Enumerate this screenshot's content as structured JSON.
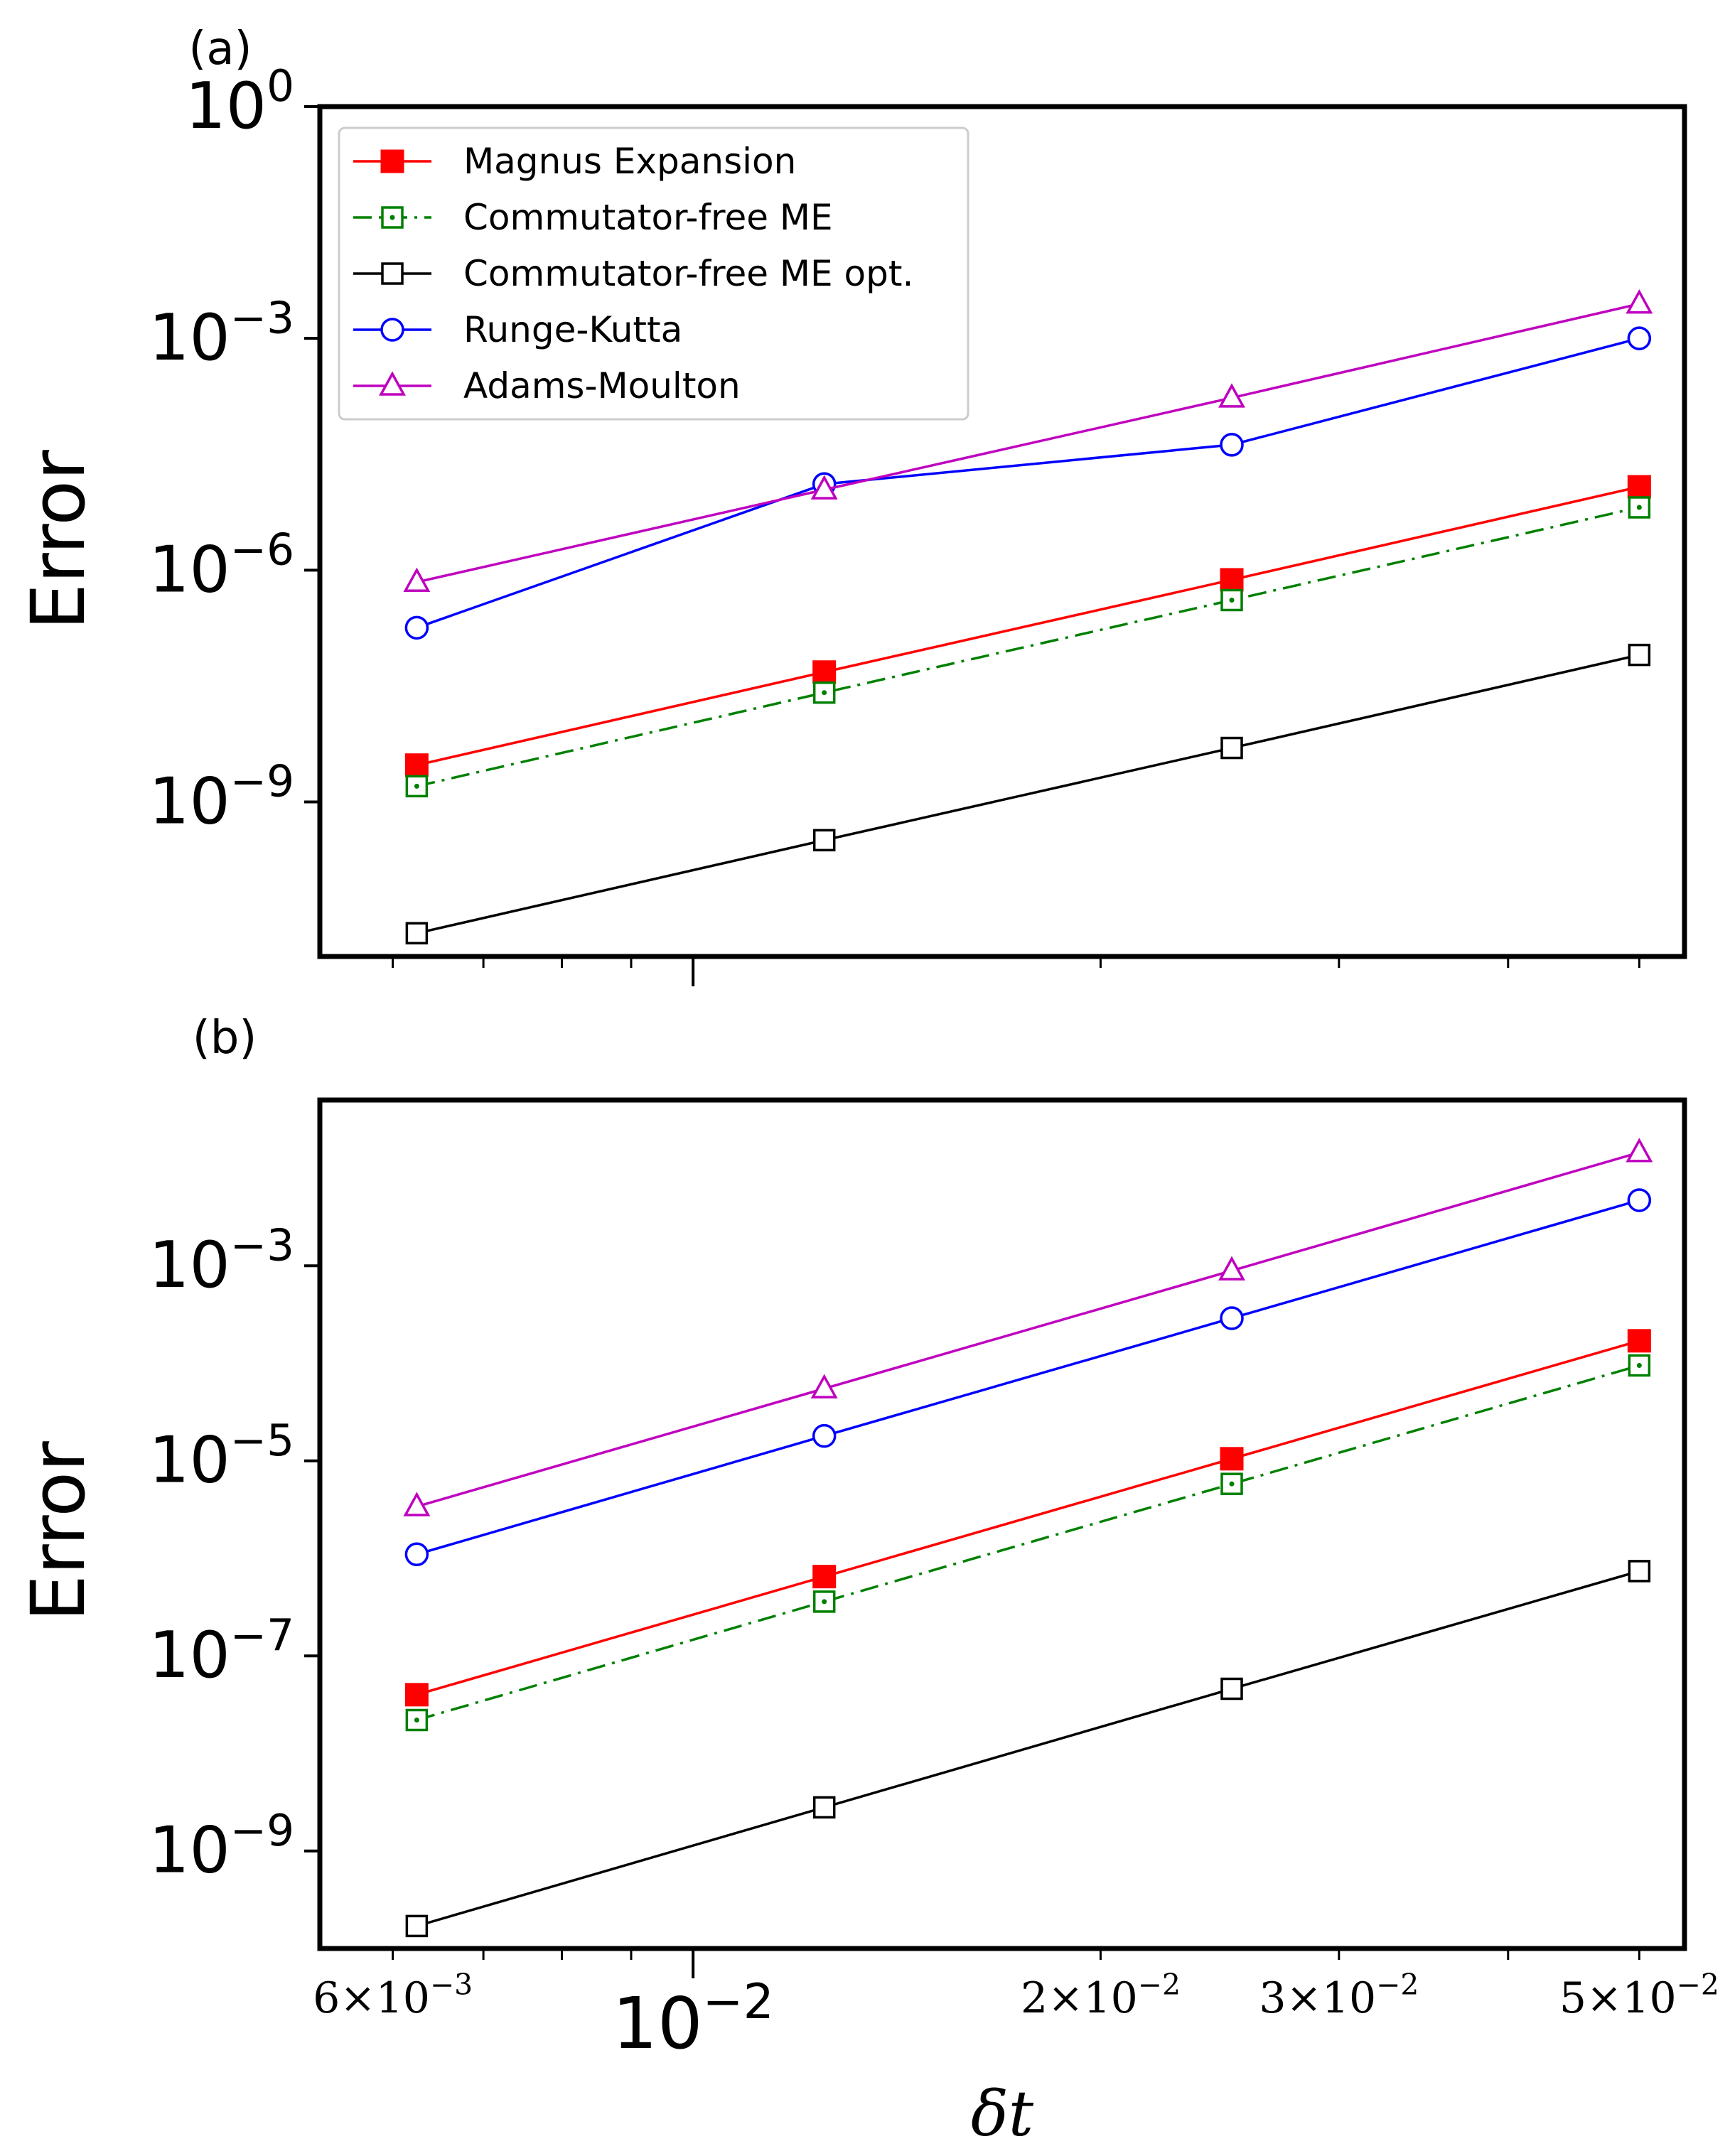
{
  "chart_data": [
    {
      "type": "line",
      "panel_label": "(a)",
      "ylabel": "Error",
      "xscale": "log",
      "yscale": "log",
      "xlim": [
        0.0053,
        0.054
      ],
      "ylim": [
        1e-11,
        1.0
      ],
      "yticks": [
        {
          "value": 1,
          "base": "10",
          "exp": "0"
        },
        {
          "value": 0.001,
          "base": "10",
          "exp": "−3"
        },
        {
          "value": 1e-06,
          "base": "10",
          "exp": "−6"
        },
        {
          "value": 1e-09,
          "base": "10",
          "exp": "−9"
        }
      ],
      "grid": false,
      "legend": {
        "position": "top-left"
      },
      "x": [
        0.00625,
        0.0125,
        0.025,
        0.05
      ],
      "series": [
        {
          "name": "Magnus Expansion",
          "color": "#ff0000",
          "marker": "square-filled",
          "linestyle": "solid",
          "values": [
            3e-09,
            4.8e-08,
            7.5e-07,
            1.2e-05
          ]
        },
        {
          "name": "Commutator-free ME",
          "color": "#008000",
          "marker": "square-dot",
          "linestyle": "dashdot",
          "values": [
            1.6e-09,
            2.6e-08,
            4.1e-07,
            6.5e-06
          ]
        },
        {
          "name": "Commutator-free ME opt.",
          "color": "#000000",
          "marker": "square-open",
          "linestyle": "solid",
          "values": [
            2e-11,
            3.2e-10,
            5e-09,
            8e-08
          ]
        },
        {
          "name": "Runge-Kutta",
          "color": "#0000ff",
          "marker": "circle-open",
          "linestyle": "solid",
          "values": [
            1.8e-07,
            1.3e-05,
            4.2e-05,
            0.001
          ]
        },
        {
          "name": "Adams-Moulton",
          "color": "#bf00bf",
          "marker": "triangle-open",
          "linestyle": "solid",
          "values": [
            7e-07,
            1.1e-05,
            0.00017,
            0.0028
          ]
        }
      ]
    },
    {
      "type": "line",
      "panel_label": "(b)",
      "ylabel": "Error",
      "xlabel": "δt",
      "xscale": "log",
      "yscale": "log",
      "xlim": [
        0.0053,
        0.054
      ],
      "ylim": [
        1e-10,
        0.05
      ],
      "yticks": [
        {
          "value": 0.001,
          "base": "10",
          "exp": "−3"
        },
        {
          "value": 1e-05,
          "base": "10",
          "exp": "−5"
        },
        {
          "value": 1e-07,
          "base": "10",
          "exp": "−7"
        },
        {
          "value": 1e-09,
          "base": "10",
          "exp": "−9"
        }
      ],
      "xticks_major": [
        {
          "value": 0.01,
          "base": "10",
          "exp": "−2",
          "prefix": ""
        }
      ],
      "xticks_minor_labeled": [
        {
          "value": 0.006,
          "prefix": "6×",
          "base": "10",
          "exp": "−3"
        },
        {
          "value": 0.02,
          "prefix": "2×",
          "base": "10",
          "exp": "−2"
        },
        {
          "value": 0.03,
          "prefix": "3×",
          "base": "10",
          "exp": "−2"
        },
        {
          "value": 0.05,
          "prefix": "5×",
          "base": "10",
          "exp": "−2"
        }
      ],
      "grid": false,
      "x": [
        0.00625,
        0.0125,
        0.025,
        0.05
      ],
      "series": [
        {
          "name": "Magnus Expansion",
          "color": "#ff0000",
          "marker": "square-filled",
          "linestyle": "solid",
          "values": [
            4e-08,
            6.5e-07,
            1.05e-05,
            0.00017
          ]
        },
        {
          "name": "Commutator-free ME",
          "color": "#008000",
          "marker": "square-dot",
          "linestyle": "dashdot",
          "values": [
            2.2e-08,
            3.6e-07,
            5.8e-06,
            9.5e-05
          ]
        },
        {
          "name": "Commutator-free ME opt.",
          "color": "#000000",
          "marker": "square-open",
          "linestyle": "solid",
          "values": [
            1.7e-10,
            2.8e-09,
            4.6e-08,
            7.4e-07
          ]
        },
        {
          "name": "Runge-Kutta",
          "color": "#0000ff",
          "marker": "circle-open",
          "linestyle": "solid",
          "values": [
            1.1e-06,
            1.8e-05,
            0.00029,
            0.0047
          ]
        },
        {
          "name": "Adams-Moulton",
          "color": "#bf00bf",
          "marker": "triangle-open",
          "linestyle": "solid",
          "values": [
            3.4e-06,
            5.5e-05,
            0.00089,
            0.0145
          ]
        }
      ]
    }
  ]
}
